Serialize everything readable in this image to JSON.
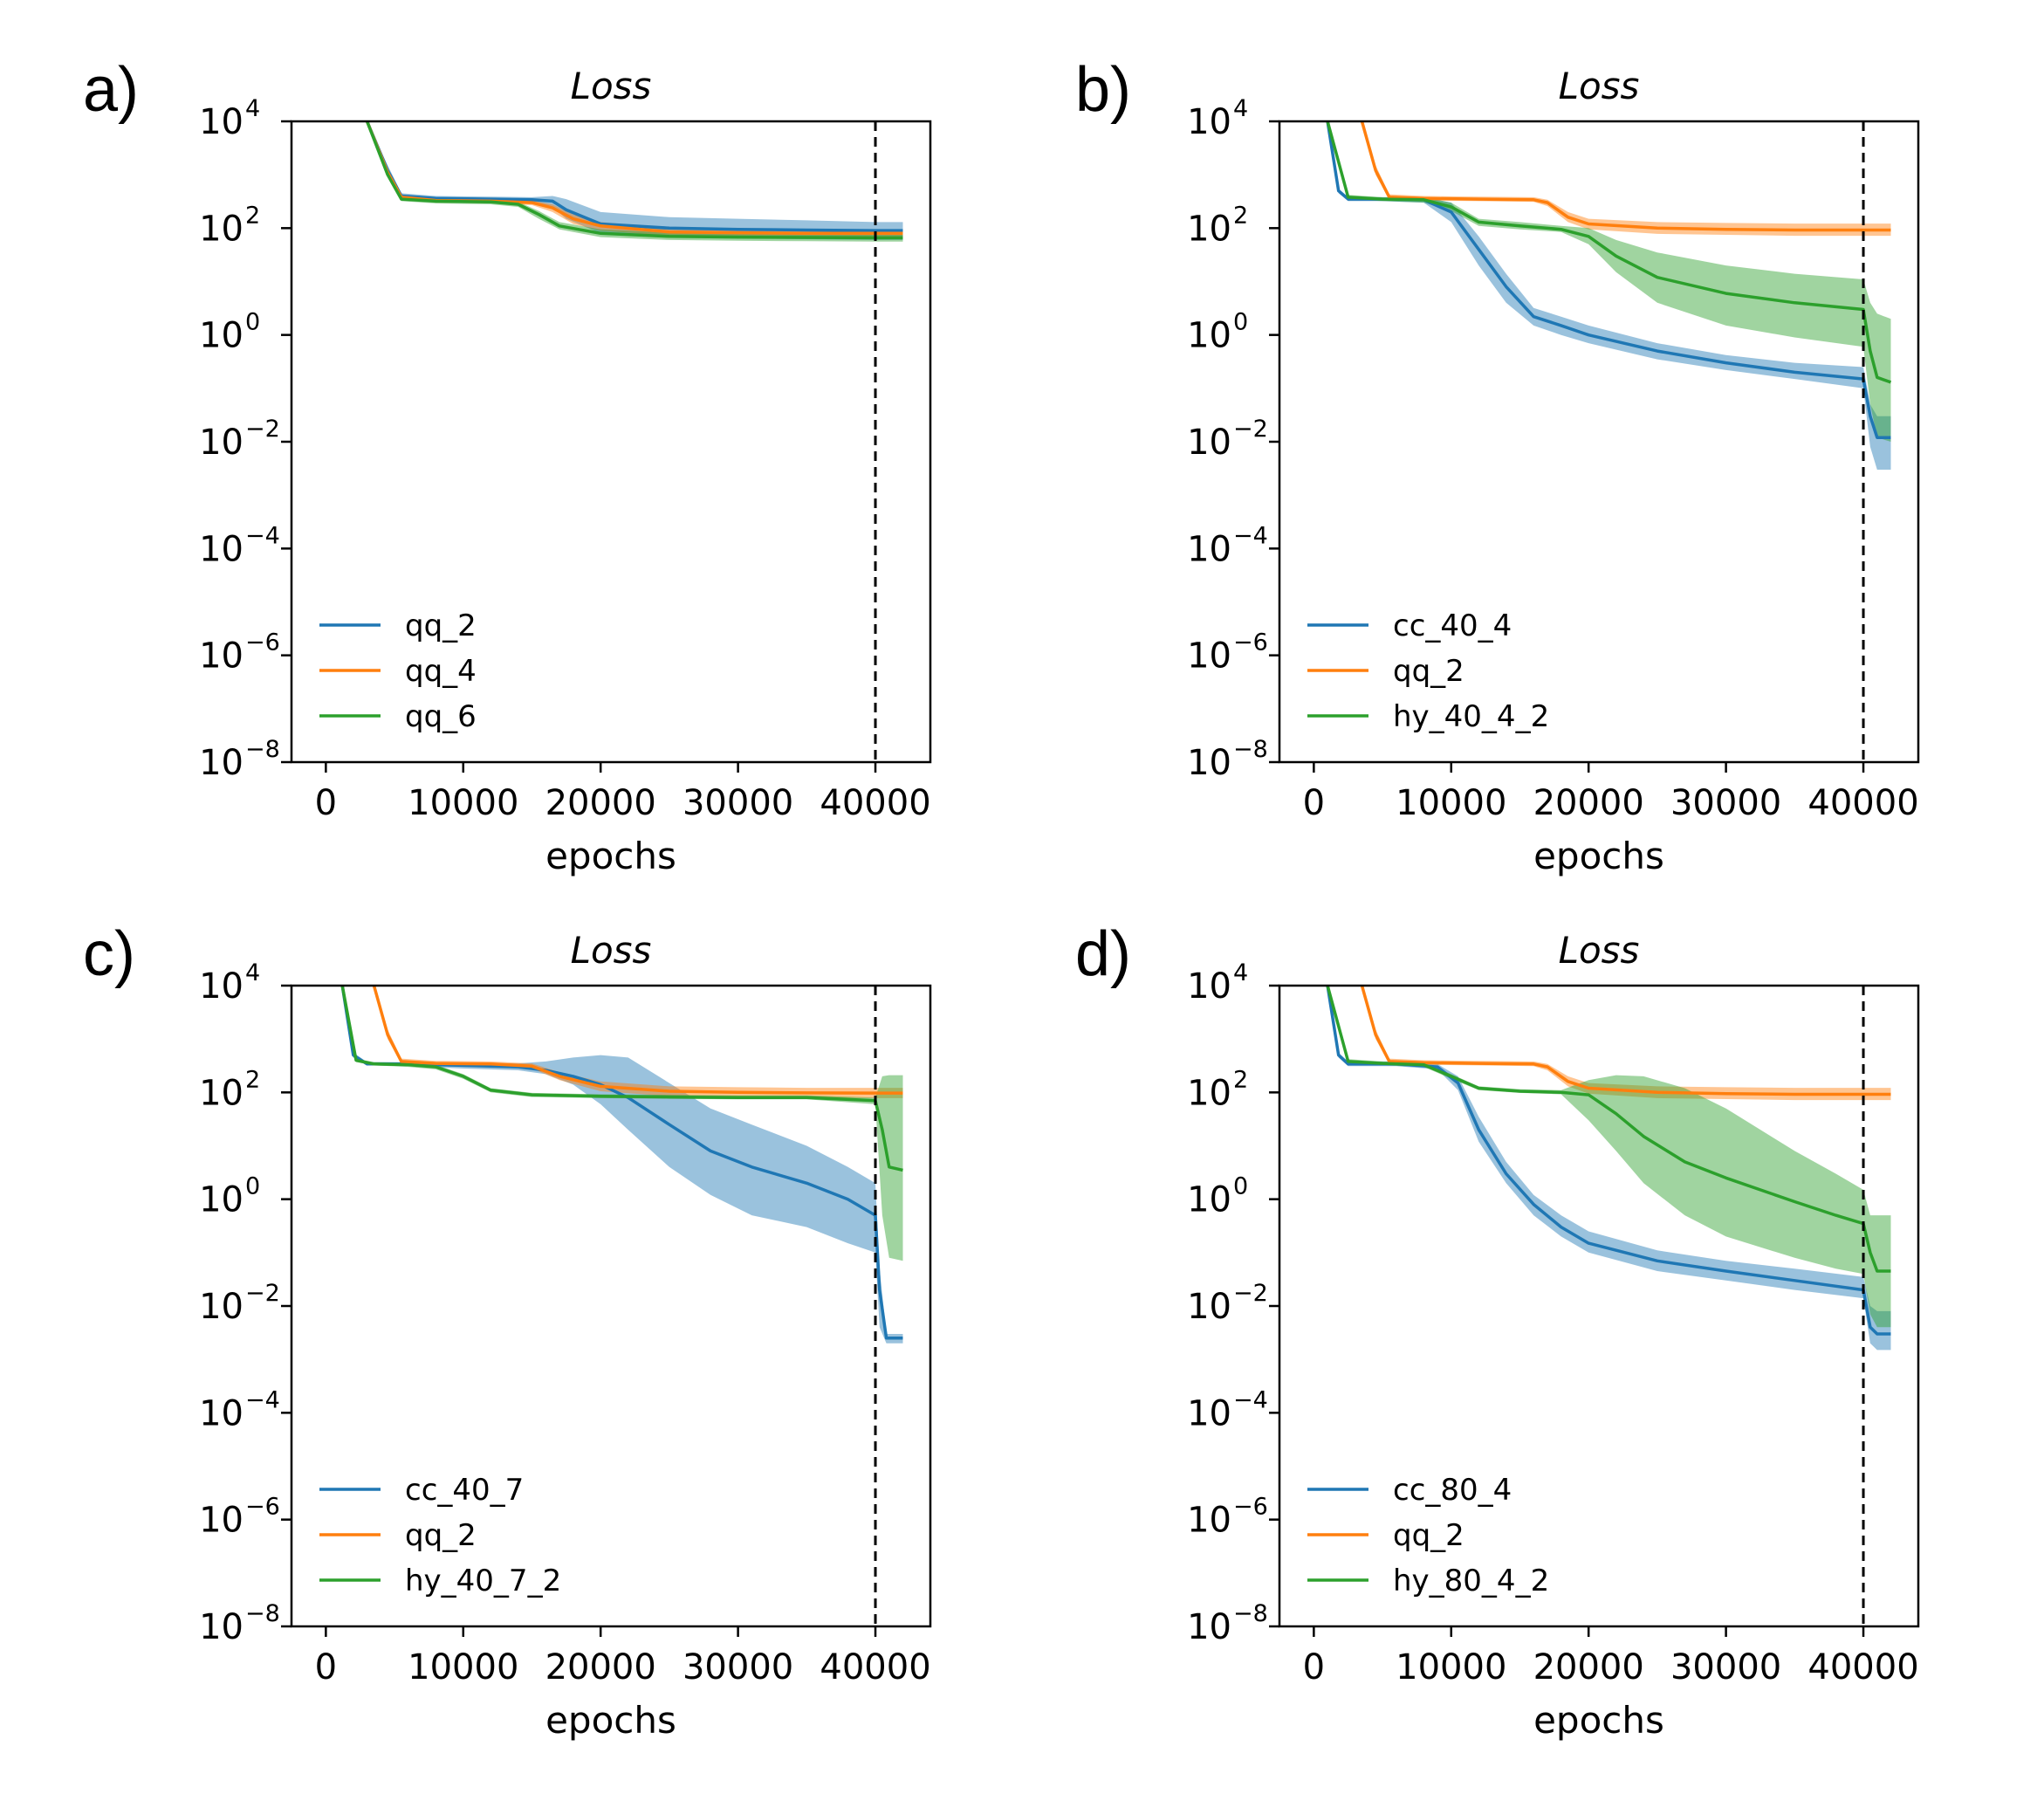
{
  "colors": {
    "blue": "#1f77b4",
    "orange": "#ff7f0e",
    "green": "#2ca02c"
  },
  "chart_data": [
    {
      "type": "line",
      "panel": "a)",
      "title": "Loss",
      "xlabel": "epochs",
      "ylabel": "",
      "yscale": "log",
      "xlim": [
        -2500,
        44000
      ],
      "ylim_exp": [
        -8,
        4
      ],
      "xticks": [
        "0",
        "10000",
        "20000",
        "30000",
        "40000"
      ],
      "yticks_exp": [
        "−8",
        "−6",
        "−4",
        "−2",
        "0",
        "2",
        "4"
      ],
      "vline_x": 40000,
      "legend_position": "lower-left",
      "series": [
        {
          "name": "qq_2",
          "color": "blue",
          "x": [
            3000,
            4500,
            5500,
            8000,
            12000,
            15000,
            16500,
            17500,
            20000,
            25000,
            30000,
            35000,
            40000,
            42000
          ],
          "y": [
            10000,
            1200,
            400,
            360,
            350,
            340,
            320,
            220,
            120,
            100,
            95,
            92,
            90,
            90
          ],
          "band_lo": [
            10000,
            1000,
            350,
            330,
            320,
            300,
            250,
            150,
            80,
            70,
            65,
            62,
            60,
            60
          ],
          "band_hi": [
            10000,
            1500,
            450,
            400,
            390,
            380,
            400,
            350,
            200,
            160,
            150,
            140,
            130,
            130
          ]
        },
        {
          "name": "qq_4",
          "color": "orange",
          "x": [
            3000,
            4500,
            5500,
            8000,
            12000,
            15000,
            16500,
            18000,
            20000,
            25000,
            30000,
            35000,
            40000,
            42000
          ],
          "y": [
            10000,
            1100,
            380,
            330,
            320,
            300,
            240,
            150,
            110,
            85,
            82,
            80,
            80,
            80
          ],
          "band_lo": [
            10000,
            950,
            340,
            300,
            290,
            270,
            200,
            120,
            90,
            72,
            70,
            68,
            68,
            68
          ],
          "band_hi": [
            10000,
            1300,
            420,
            360,
            350,
            330,
            280,
            180,
            130,
            100,
            95,
            92,
            92,
            92
          ]
        },
        {
          "name": "qq_6",
          "color": "green",
          "x": [
            3000,
            4500,
            5500,
            8000,
            12000,
            14000,
            15500,
            17000,
            20000,
            25000,
            30000,
            35000,
            40000,
            42000
          ],
          "y": [
            10000,
            1000,
            350,
            320,
            310,
            280,
            180,
            110,
            80,
            70,
            68,
            67,
            66,
            66
          ],
          "band_lo": [
            10000,
            900,
            320,
            290,
            280,
            250,
            150,
            95,
            68,
            60,
            58,
            57,
            56,
            56
          ],
          "band_hi": [
            10000,
            1200,
            390,
            350,
            340,
            310,
            210,
            130,
            95,
            82,
            80,
            78,
            77,
            77
          ]
        }
      ]
    },
    {
      "type": "line",
      "panel": "b)",
      "title": "Loss",
      "xlabel": "epochs",
      "ylabel": "",
      "yscale": "log",
      "xlim": [
        -2500,
        44000
      ],
      "ylim_exp": [
        -8,
        4
      ],
      "xticks": [
        "0",
        "10000",
        "20000",
        "30000",
        "40000"
      ],
      "yticks_exp": [
        "−8",
        "−6",
        "−4",
        "−2",
        "0",
        "2",
        "4"
      ],
      "vline_x": 40000,
      "legend_position": "lower-left",
      "series": [
        {
          "name": "cc_40_4",
          "color": "blue",
          "x": [
            1000,
            1800,
            2500,
            5000,
            8000,
            10000,
            12000,
            14000,
            16000,
            18000,
            20000,
            25000,
            30000,
            35000,
            40000,
            40500,
            41000,
            42000
          ],
          "y": [
            10000,
            500,
            350,
            350,
            340,
            200,
            40,
            8,
            2.2,
            1.5,
            1.0,
            0.5,
            0.3,
            0.2,
            0.15,
            0.03,
            0.012,
            0.012
          ],
          "band_lo": [
            10000,
            450,
            320,
            320,
            300,
            130,
            20,
            4,
            1.5,
            1.0,
            0.7,
            0.35,
            0.22,
            0.15,
            0.1,
            0.008,
            0.003,
            0.003
          ],
          "band_hi": [
            10000,
            550,
            380,
            380,
            380,
            300,
            70,
            14,
            3.2,
            2.2,
            1.5,
            0.7,
            0.42,
            0.3,
            0.25,
            0.05,
            0.03,
            0.03
          ]
        },
        {
          "name": "qq_2",
          "color": "orange",
          "x": [
            3500,
            4500,
            5500,
            8000,
            12000,
            16000,
            17000,
            18500,
            20000,
            25000,
            30000,
            35000,
            40000,
            42000
          ],
          "y": [
            10000,
            1200,
            380,
            360,
            350,
            340,
            300,
            160,
            120,
            100,
            95,
            92,
            92,
            92
          ],
          "band_lo": [
            10000,
            1000,
            340,
            330,
            320,
            310,
            260,
            130,
            95,
            78,
            75,
            72,
            72,
            72
          ],
          "band_hi": [
            10000,
            1500,
            430,
            400,
            390,
            380,
            340,
            200,
            150,
            130,
            125,
            122,
            122,
            122
          ]
        },
        {
          "name": "hy_40_4_2",
          "color": "green",
          "x": [
            1000,
            2500,
            5000,
            8000,
            10000,
            12000,
            15000,
            18000,
            20000,
            22000,
            25000,
            30000,
            35000,
            40000,
            40500,
            41000,
            42000
          ],
          "y": [
            10000,
            380,
            350,
            340,
            250,
            130,
            110,
            95,
            70,
            30,
            12,
            6,
            4,
            3,
            0.5,
            0.16,
            0.13
          ],
          "band_lo": [
            10000,
            350,
            320,
            300,
            210,
            110,
            95,
            85,
            50,
            15,
            4,
            1.5,
            0.9,
            0.6,
            0.05,
            0.012,
            0.01
          ],
          "band_hi": [
            10000,
            420,
            380,
            380,
            300,
            150,
            130,
            110,
            100,
            60,
            35,
            20,
            14,
            11,
            4,
            2.5,
            2.0
          ]
        }
      ]
    },
    {
      "type": "line",
      "panel": "c)",
      "title": "Loss",
      "xlabel": "epochs",
      "ylabel": "",
      "yscale": "log",
      "xlim": [
        -2500,
        44000
      ],
      "ylim_exp": [
        -8,
        4
      ],
      "xticks": [
        "0",
        "10000",
        "20000",
        "30000",
        "40000"
      ],
      "yticks_exp": [
        "−8",
        "−6",
        "−4",
        "−2",
        "0",
        "2",
        "4"
      ],
      "vline_x": 40000,
      "legend_position": "lower-left",
      "series": [
        {
          "name": "cc_40_7",
          "color": "blue",
          "x": [
            1200,
            2000,
            3000,
            6000,
            10000,
            14000,
            16000,
            18000,
            20000,
            22000,
            25000,
            28000,
            31000,
            35000,
            38000,
            40000,
            40300,
            40800,
            42000
          ],
          "y": [
            10000,
            500,
            340,
            340,
            320,
            300,
            260,
            200,
            140,
            80,
            25,
            8,
            4,
            2,
            1,
            0.5,
            0.02,
            0.0025,
            0.0025
          ],
          "band_lo": [
            10000,
            450,
            320,
            310,
            280,
            260,
            220,
            140,
            60,
            20,
            4,
            1.2,
            0.5,
            0.3,
            0.15,
            0.1,
            0.004,
            0.002,
            0.002
          ],
          "band_hi": [
            10000,
            560,
            370,
            370,
            360,
            350,
            380,
            450,
            500,
            450,
            150,
            50,
            25,
            10,
            4,
            2,
            0.05,
            0.003,
            0.003
          ]
        },
        {
          "name": "qq_2",
          "color": "orange",
          "x": [
            3500,
            4500,
            5500,
            8000,
            12000,
            15000,
            17000,
            20000,
            25000,
            30000,
            35000,
            40000,
            42000
          ],
          "y": [
            10000,
            1200,
            380,
            350,
            340,
            310,
            200,
            130,
            105,
            100,
            98,
            97,
            97
          ],
          "band_lo": [
            10000,
            1000,
            340,
            320,
            310,
            280,
            170,
            105,
            85,
            80,
            78,
            78,
            78
          ],
          "band_hi": [
            10000,
            1500,
            430,
            390,
            380,
            350,
            240,
            160,
            130,
            125,
            122,
            122,
            122
          ]
        },
        {
          "name": "hy_40_7_2",
          "color": "green",
          "x": [
            1200,
            2200,
            3500,
            6000,
            8000,
            10000,
            12000,
            15000,
            20000,
            25000,
            30000,
            35000,
            40000,
            40500,
            41000,
            42000
          ],
          "y": [
            10000,
            400,
            340,
            330,
            300,
            200,
            110,
            90,
            85,
            82,
            80,
            80,
            70,
            20,
            4,
            3.5
          ],
          "band_lo": [
            10000,
            370,
            320,
            300,
            270,
            180,
            100,
            82,
            78,
            76,
            74,
            74,
            60,
            0.5,
            0.08,
            0.07
          ],
          "band_hi": [
            10000,
            430,
            370,
            360,
            330,
            220,
            120,
            98,
            92,
            90,
            88,
            88,
            80,
            200,
            210,
            210
          ]
        }
      ]
    },
    {
      "type": "line",
      "panel": "d)",
      "title": "Loss",
      "xlabel": "epochs",
      "ylabel": "",
      "yscale": "log",
      "xlim": [
        -2500,
        44000
      ],
      "ylim_exp": [
        -8,
        4
      ],
      "xticks": [
        "0",
        "10000",
        "20000",
        "30000",
        "40000"
      ],
      "yticks_exp": [
        "−8",
        "−6",
        "−4",
        "−2",
        "0",
        "2",
        "4"
      ],
      "vline_x": 40000,
      "legend_position": "lower-left",
      "series": [
        {
          "name": "cc_80_4",
          "color": "blue",
          "x": [
            1000,
            1800,
            2500,
            6000,
            9000,
            10500,
            12000,
            14000,
            16000,
            18000,
            20000,
            25000,
            30000,
            35000,
            40000,
            40500,
            41000,
            42000
          ],
          "y": [
            10000,
            500,
            340,
            340,
            300,
            150,
            20,
            3,
            0.8,
            0.3,
            0.15,
            0.07,
            0.045,
            0.03,
            0.02,
            0.004,
            0.003,
            0.003
          ],
          "band_lo": [
            10000,
            450,
            310,
            310,
            270,
            110,
            12,
            2,
            0.5,
            0.2,
            0.1,
            0.045,
            0.03,
            0.02,
            0.014,
            0.002,
            0.0015,
            0.0015
          ],
          "band_hi": [
            10000,
            560,
            380,
            380,
            340,
            200,
            35,
            5,
            1.2,
            0.5,
            0.25,
            0.11,
            0.07,
            0.05,
            0.035,
            0.01,
            0.008,
            0.008
          ]
        },
        {
          "name": "qq_2",
          "color": "orange",
          "x": [
            3500,
            4500,
            5500,
            8000,
            12000,
            16000,
            17000,
            18500,
            20000,
            25000,
            30000,
            35000,
            40000,
            42000
          ],
          "y": [
            10000,
            1200,
            380,
            360,
            350,
            340,
            300,
            160,
            120,
            100,
            95,
            92,
            92,
            92
          ],
          "band_lo": [
            10000,
            1000,
            340,
            330,
            320,
            310,
            260,
            130,
            95,
            78,
            75,
            72,
            72,
            72
          ],
          "band_hi": [
            10000,
            1500,
            430,
            400,
            390,
            380,
            340,
            200,
            150,
            130,
            125,
            122,
            122,
            122
          ]
        },
        {
          "name": "hy_80_4_2",
          "color": "green",
          "x": [
            1000,
            2500,
            5000,
            8000,
            10000,
            12000,
            15000,
            18000,
            20000,
            22000,
            24000,
            27000,
            30000,
            35000,
            38000,
            40000,
            40500,
            41000,
            42000
          ],
          "y": [
            10000,
            380,
            350,
            330,
            200,
            120,
            105,
            100,
            90,
            40,
            15,
            5,
            2.5,
            0.9,
            0.5,
            0.35,
            0.1,
            0.045,
            0.045
          ],
          "band_lo": [
            10000,
            350,
            320,
            300,
            180,
            110,
            98,
            92,
            30,
            8,
            2,
            0.5,
            0.2,
            0.08,
            0.05,
            0.04,
            0.007,
            0.004,
            0.004
          ],
          "band_hi": [
            10000,
            420,
            380,
            360,
            220,
            130,
            115,
            110,
            170,
            210,
            200,
            120,
            50,
            8,
            3,
            1.5,
            0.5,
            0.5,
            0.5
          ]
        }
      ]
    }
  ]
}
